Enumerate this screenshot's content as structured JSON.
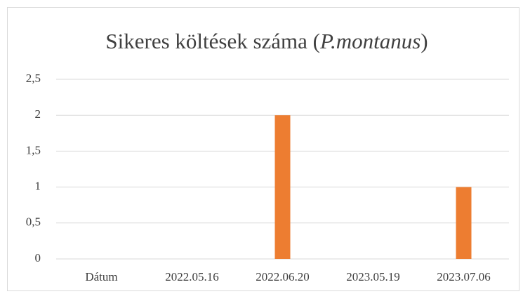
{
  "chart_data": {
    "type": "bar",
    "title": [
      "Sikeres költések száma (",
      "P.montanus",
      ")"
    ],
    "categories": [
      "Dátum",
      "2022.05.16",
      "2022.06.20",
      "2023.05.19",
      "2023.07.06"
    ],
    "values": [
      null,
      0,
      2,
      0,
      1
    ],
    "color": "#ed7d31",
    "ylim": [
      0,
      2.5
    ],
    "yticks": [
      0,
      {
        "value": 0.5,
        "label": "0,5"
      },
      1,
      {
        "value": 1.5,
        "label": "1,5"
      },
      2,
      {
        "value": 2.5,
        "label": "2,5"
      }
    ],
    "grid": true
  }
}
